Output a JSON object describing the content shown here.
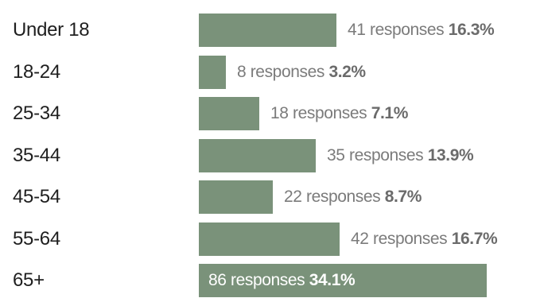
{
  "chart_data": {
    "type": "bar",
    "orientation": "horizontal",
    "categories": [
      "Under 18",
      "18-24",
      "25-34",
      "35-44",
      "45-54",
      "55-64",
      "65+"
    ],
    "values": [
      41,
      8,
      18,
      35,
      22,
      42,
      86
    ],
    "percentages": [
      "16.3%",
      "3.2%",
      "7.1%",
      "13.9%",
      "8.7%",
      "16.7%",
      "34.1%"
    ],
    "value_unit": "responses",
    "bar_color": "#7a927a",
    "title": "",
    "xlabel": "",
    "ylabel": "",
    "grid": false,
    "legend": "none"
  }
}
